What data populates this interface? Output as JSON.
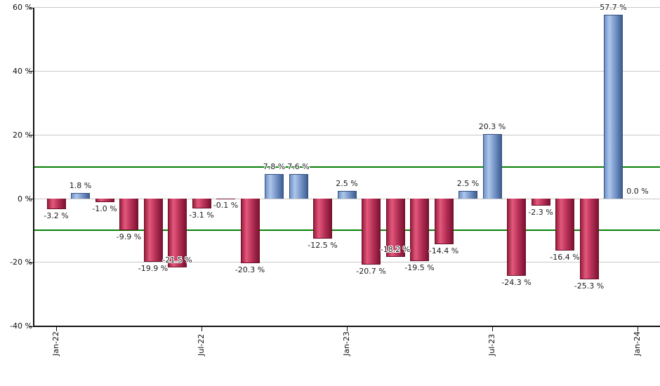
{
  "chart_data": {
    "type": "bar",
    "title": "",
    "xlabel": "",
    "ylabel": "",
    "categories": [
      "Jan-22",
      "Feb-22",
      "Mar-22",
      "Apr-22",
      "May-22",
      "Jun-22",
      "Jul-22",
      "Aug-22",
      "Sep-22",
      "Oct-22",
      "Nov-22",
      "Dec-22",
      "Jan-23",
      "Feb-23",
      "Mar-23",
      "Apr-23",
      "May-23",
      "Jun-23",
      "Jul-23",
      "Aug-23",
      "Sep-23",
      "Oct-23",
      "Nov-23",
      "Dec-23",
      "Jan-24"
    ],
    "values": [
      -3.2,
      1.8,
      -1.0,
      -9.9,
      -19.9,
      -21.5,
      -3.1,
      -0.1,
      -20.3,
      7.8,
      7.6,
      -12.5,
      2.5,
      -20.7,
      -18.2,
      -19.5,
      -14.4,
      2.5,
      20.3,
      -24.3,
      -2.3,
      -16.4,
      -25.3,
      57.7,
      0.0
    ],
    "bar_labels": [
      "-3.2 %",
      "1.8 %",
      "-1.0 %",
      "-9.9 %",
      "-19.9 %",
      "-21.5 %",
      "-3.1 %",
      "-0.1 %",
      "-20.3 %",
      "7.8 %",
      "7.6 %",
      "-12.5 %",
      "2.5 %",
      "-20.7 %",
      "-18.2 %",
      "-19.5 %",
      "-14.4 %",
      "2.5 %",
      "20.3 %",
      "-24.3 %",
      "-2.3 %",
      "-16.4 %",
      "-25.3 %",
      "57.7 %",
      "0.0 %"
    ],
    "x_axis_tick_labels": [
      "Jan-22",
      "Jul-22",
      "Jan-23",
      "Jul-23",
      "Jan-24"
    ],
    "y_axis_tick_labels": [
      "60 %",
      "40 %",
      "20 %",
      "0 %",
      "-20 %",
      "-40 %"
    ],
    "y_tick_values": [
      60,
      40,
      20,
      0,
      -20,
      -40
    ],
    "ylim": [
      -40,
      60
    ],
    "grid": true,
    "legend": "none",
    "guides": [
      {
        "value": 10,
        "color": "#078007"
      },
      {
        "value": -10,
        "color": "#078007"
      }
    ],
    "label_dy_overrides": {
      "5": -20,
      "14": -20
    },
    "colors": {
      "positive_bar": "#7b9cd2",
      "positive_bar_border": "#34517f",
      "negative_bar": "#cc3a60",
      "negative_bar_border": "#6e0f2a",
      "gridline": "#c8c8c8",
      "axis": "#111111",
      "guide_line": "#078007",
      "label_text": "#1c1c1c",
      "background": "#ffffff"
    }
  }
}
